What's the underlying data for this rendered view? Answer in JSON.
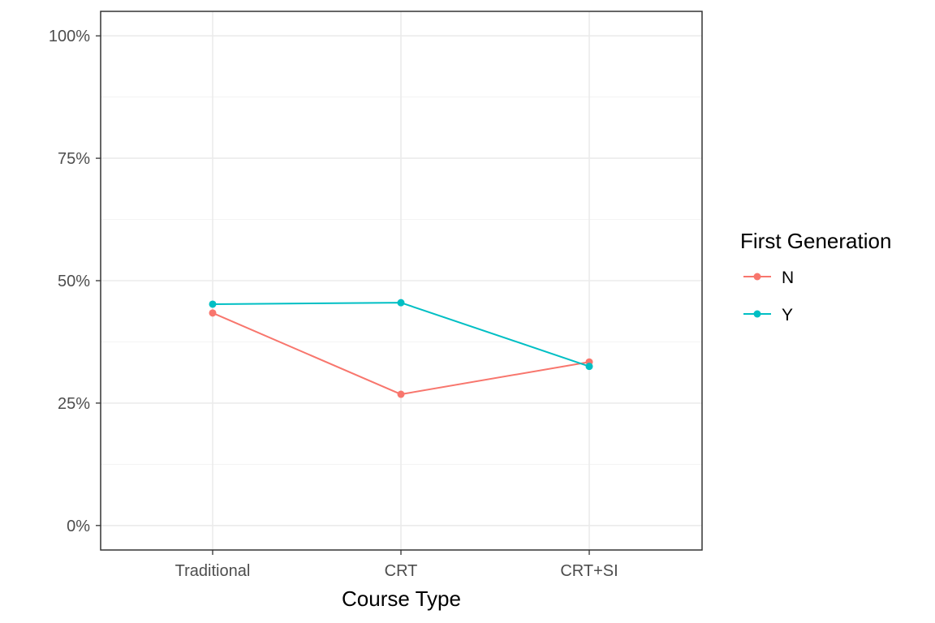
{
  "chart_data": {
    "type": "line",
    "categories": [
      "Traditional",
      "CRT",
      "CRT+SI"
    ],
    "series": [
      {
        "name": "N",
        "values": [
          0.434,
          0.268,
          0.334
        ],
        "color": "#F8766D"
      },
      {
        "name": "Y",
        "values": [
          0.452,
          0.455,
          0.325
        ],
        "color": "#00BFC4"
      }
    ],
    "xlabel": "Course Type",
    "ylabel": "",
    "ylim": [
      -0.05,
      1.05
    ],
    "yticks": [
      0,
      0.25,
      0.5,
      0.75,
      1.0
    ],
    "ytick_labels": [
      "0%",
      "25%",
      "50%",
      "75%",
      "100%"
    ],
    "legend": {
      "title": "First Generation",
      "placement": "right"
    },
    "grid": true
  }
}
